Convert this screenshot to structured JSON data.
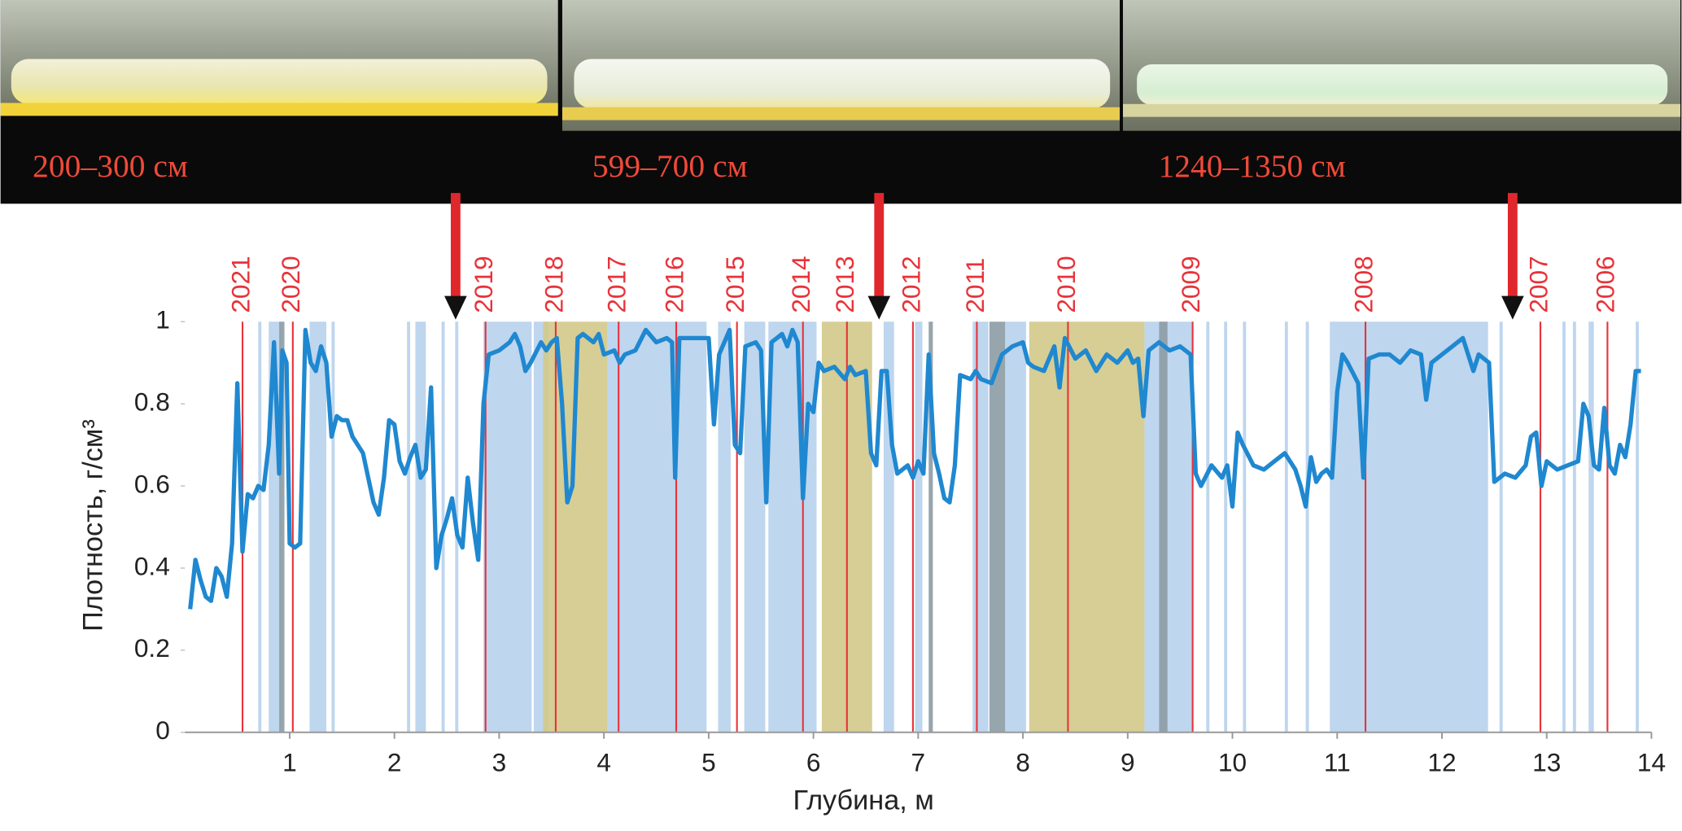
{
  "photo_labels": [
    "200–300 см",
    "599–700 см",
    "1240–1350 см"
  ],
  "chart_data": {
    "type": "line",
    "xlabel": "Глубина, м",
    "ylabel": "Плотность, г/см³",
    "xlim": [
      0,
      14
    ],
    "ylim": [
      0,
      1
    ],
    "xticks": [
      1,
      2,
      3,
      4,
      5,
      6,
      7,
      8,
      9,
      10,
      11,
      12,
      13,
      14
    ],
    "yticks": [
      0,
      0.2,
      0.4,
      0.6,
      0.8,
      1
    ],
    "color": "#1f88d0",
    "x": [
      0.05,
      0.1,
      0.15,
      0.2,
      0.25,
      0.3,
      0.35,
      0.4,
      0.45,
      0.5,
      0.55,
      0.6,
      0.65,
      0.7,
      0.75,
      0.8,
      0.85,
      0.9,
      0.93,
      0.97,
      1.0,
      1.05,
      1.1,
      1.15,
      1.2,
      1.25,
      1.3,
      1.35,
      1.4,
      1.45,
      1.5,
      1.55,
      1.6,
      1.7,
      1.8,
      1.85,
      1.9,
      1.95,
      2.0,
      2.05,
      2.1,
      2.15,
      2.2,
      2.25,
      2.3,
      2.35,
      2.4,
      2.45,
      2.5,
      2.55,
      2.6,
      2.65,
      2.7,
      2.75,
      2.8,
      2.85,
      2.9,
      3.0,
      3.1,
      3.15,
      3.2,
      3.25,
      3.3,
      3.4,
      3.45,
      3.5,
      3.55,
      3.6,
      3.65,
      3.7,
      3.75,
      3.8,
      3.9,
      3.95,
      4.0,
      4.1,
      4.15,
      4.2,
      4.3,
      4.4,
      4.5,
      4.6,
      4.65,
      4.68,
      4.72,
      4.8,
      5.0,
      5.05,
      5.1,
      5.2,
      5.25,
      5.3,
      5.35,
      5.45,
      5.5,
      5.55,
      5.6,
      5.7,
      5.75,
      5.8,
      5.85,
      5.9,
      5.95,
      6.0,
      6.05,
      6.1,
      6.2,
      6.3,
      6.35,
      6.4,
      6.5,
      6.55,
      6.6,
      6.65,
      6.7,
      6.75,
      6.8,
      6.9,
      6.95,
      7.0,
      7.05,
      7.1,
      7.15,
      7.2,
      7.25,
      7.3,
      7.35,
      7.4,
      7.5,
      7.55,
      7.6,
      7.7,
      7.8,
      7.9,
      8.0,
      8.05,
      8.1,
      8.2,
      8.3,
      8.35,
      8.4,
      8.5,
      8.6,
      8.7,
      8.8,
      8.9,
      9.0,
      9.05,
      9.1,
      9.15,
      9.2,
      9.3,
      9.4,
      9.5,
      9.6,
      9.65,
      9.7,
      9.8,
      9.9,
      9.95,
      10.0,
      10.05,
      10.1,
      10.2,
      10.3,
      10.4,
      10.5,
      10.6,
      10.65,
      10.7,
      10.75,
      10.8,
      10.85,
      10.9,
      10.95,
      11.0,
      11.05,
      11.1,
      11.2,
      11.25,
      11.3,
      11.4,
      11.5,
      11.6,
      11.7,
      11.8,
      11.85,
      11.9,
      12.0,
      12.1,
      12.2,
      12.3,
      12.35,
      12.45,
      12.5,
      12.6,
      12.7,
      12.8,
      12.85,
      12.9,
      12.95,
      13.0,
      13.1,
      13.2,
      13.3,
      13.35,
      13.4,
      13.45,
      13.5,
      13.55,
      13.6,
      13.65,
      13.7,
      13.75,
      13.8,
      13.85,
      13.9
    ],
    "values": [
      0.3,
      0.42,
      0.37,
      0.33,
      0.32,
      0.4,
      0.38,
      0.33,
      0.46,
      0.85,
      0.44,
      0.58,
      0.57,
      0.6,
      0.59,
      0.7,
      0.95,
      0.63,
      0.93,
      0.9,
      0.46,
      0.45,
      0.46,
      0.98,
      0.9,
      0.88,
      0.94,
      0.9,
      0.72,
      0.77,
      0.76,
      0.76,
      0.72,
      0.68,
      0.56,
      0.53,
      0.62,
      0.76,
      0.75,
      0.66,
      0.63,
      0.67,
      0.7,
      0.62,
      0.64,
      0.84,
      0.4,
      0.48,
      0.52,
      0.57,
      0.48,
      0.45,
      0.62,
      0.51,
      0.42,
      0.8,
      0.92,
      0.93,
      0.95,
      0.97,
      0.94,
      0.88,
      0.9,
      0.95,
      0.93,
      0.95,
      0.96,
      0.8,
      0.56,
      0.6,
      0.96,
      0.97,
      0.95,
      0.97,
      0.92,
      0.93,
      0.9,
      0.92,
      0.93,
      0.98,
      0.95,
      0.96,
      0.95,
      0.62,
      0.96,
      0.96,
      0.96,
      0.75,
      0.92,
      0.98,
      0.7,
      0.68,
      0.94,
      0.95,
      0.93,
      0.56,
      0.95,
      0.97,
      0.94,
      0.98,
      0.95,
      0.57,
      0.8,
      0.78,
      0.9,
      0.88,
      0.89,
      0.86,
      0.89,
      0.87,
      0.88,
      0.68,
      0.65,
      0.88,
      0.88,
      0.7,
      0.63,
      0.65,
      0.62,
      0.66,
      0.63,
      0.92,
      0.68,
      0.63,
      0.57,
      0.56,
      0.65,
      0.87,
      0.86,
      0.88,
      0.86,
      0.85,
      0.92,
      0.94,
      0.95,
      0.9,
      0.89,
      0.88,
      0.94,
      0.84,
      0.96,
      0.91,
      0.93,
      0.88,
      0.92,
      0.9,
      0.93,
      0.9,
      0.91,
      0.77,
      0.93,
      0.95,
      0.93,
      0.94,
      0.92,
      0.63,
      0.6,
      0.65,
      0.62,
      0.65,
      0.55,
      0.73,
      0.7,
      0.65,
      0.64,
      0.66,
      0.68,
      0.64,
      0.6,
      0.55,
      0.67,
      0.61,
      0.63,
      0.64,
      0.62,
      0.83,
      0.92,
      0.9,
      0.85,
      0.62,
      0.91,
      0.92,
      0.92,
      0.9,
      0.93,
      0.92,
      0.81,
      0.9,
      0.92,
      0.94,
      0.96,
      0.88,
      0.92,
      0.9,
      0.61,
      0.63,
      0.62,
      0.65,
      0.72,
      0.73,
      0.6,
      0.66,
      0.64,
      0.65,
      0.66,
      0.8,
      0.77,
      0.65,
      0.64,
      0.79,
      0.65,
      0.63,
      0.7,
      0.67,
      0.75,
      0.88,
      0.88
    ],
    "years": [
      {
        "label": "2021",
        "depth": 0.55
      },
      {
        "label": "2020",
        "depth": 1.03
      },
      {
        "label": "2019",
        "depth": 2.87
      },
      {
        "label": "2018",
        "depth": 3.54
      },
      {
        "label": "2017",
        "depth": 4.14
      },
      {
        "label": "2016",
        "depth": 4.69
      },
      {
        "label": "2015",
        "depth": 5.27
      },
      {
        "label": "2014",
        "depth": 5.9
      },
      {
        "label": "2013",
        "depth": 6.32
      },
      {
        "label": "2012",
        "depth": 6.95
      },
      {
        "label": "2011",
        "depth": 7.56
      },
      {
        "label": "2010",
        "depth": 8.43
      },
      {
        "label": "2009",
        "depth": 9.62
      },
      {
        "label": "2008",
        "depth": 11.27
      },
      {
        "label": "2007",
        "depth": 12.94
      },
      {
        "label": "2006",
        "depth": 13.58
      }
    ],
    "year_color": "#e8333a",
    "bands": [
      {
        "from": 0.7,
        "to": 0.73,
        "color": "#b7d1ec"
      },
      {
        "from": 0.8,
        "to": 0.92,
        "color": "#b7d1ec"
      },
      {
        "from": 1.19,
        "to": 1.35,
        "color": "#b7d1ec"
      },
      {
        "from": 1.4,
        "to": 1.43,
        "color": "#b7d1ec"
      },
      {
        "from": 2.12,
        "to": 2.15,
        "color": "#b7d1ec"
      },
      {
        "from": 2.2,
        "to": 2.3,
        "color": "#b7d1ec"
      },
      {
        "from": 2.45,
        "to": 2.48,
        "color": "#b7d1ec"
      },
      {
        "from": 2.58,
        "to": 2.61,
        "color": "#b7d1ec"
      },
      {
        "from": 2.85,
        "to": 3.31,
        "color": "#b7d1ec"
      },
      {
        "from": 3.33,
        "to": 3.47,
        "color": "#b7d1ec"
      },
      {
        "from": 4.03,
        "to": 4.98,
        "color": "#b7d1ec"
      },
      {
        "from": 5.09,
        "to": 5.21,
        "color": "#b7d1ec"
      },
      {
        "from": 5.34,
        "to": 5.54,
        "color": "#b7d1ec"
      },
      {
        "from": 5.57,
        "to": 6.03,
        "color": "#b7d1ec"
      },
      {
        "from": 6.67,
        "to": 6.77,
        "color": "#b7d1ec"
      },
      {
        "from": 6.97,
        "to": 7.04,
        "color": "#b7d1ec"
      },
      {
        "from": 7.52,
        "to": 7.67,
        "color": "#b7d1ec"
      },
      {
        "from": 7.83,
        "to": 8.03,
        "color": "#b7d1ec"
      },
      {
        "from": 9.16,
        "to": 9.62,
        "color": "#b7d1ec"
      },
      {
        "from": 9.75,
        "to": 9.78,
        "color": "#b7d1ec"
      },
      {
        "from": 9.92,
        "to": 9.95,
        "color": "#b7d1ec"
      },
      {
        "from": 10.1,
        "to": 10.13,
        "color": "#b7d1ec"
      },
      {
        "from": 10.5,
        "to": 10.53,
        "color": "#b7d1ec"
      },
      {
        "from": 10.7,
        "to": 10.73,
        "color": "#b7d1ec"
      },
      {
        "from": 10.93,
        "to": 12.44,
        "color": "#b7d1ec"
      },
      {
        "from": 12.55,
        "to": 12.58,
        "color": "#b7d1ec"
      },
      {
        "from": 13.15,
        "to": 13.18,
        "color": "#b7d1ec"
      },
      {
        "from": 13.25,
        "to": 13.28,
        "color": "#b7d1ec"
      },
      {
        "from": 13.4,
        "to": 13.45,
        "color": "#b7d1ec"
      },
      {
        "from": 13.85,
        "to": 13.88,
        "color": "#b7d1ec"
      },
      {
        "from": 3.42,
        "to": 4.03,
        "color": "#d1c98a"
      },
      {
        "from": 6.08,
        "to": 6.56,
        "color": "#d1c98a"
      },
      {
        "from": 8.06,
        "to": 9.16,
        "color": "#d1c98a"
      },
      {
        "from": 0.9,
        "to": 0.95,
        "color": "#8c9ca4"
      },
      {
        "from": 7.1,
        "to": 7.14,
        "color": "#8c9ca4"
      },
      {
        "from": 7.68,
        "to": 7.83,
        "color": "#8c9ca4"
      },
      {
        "from": 9.3,
        "to": 9.38,
        "color": "#8c9ca4"
      }
    ]
  }
}
